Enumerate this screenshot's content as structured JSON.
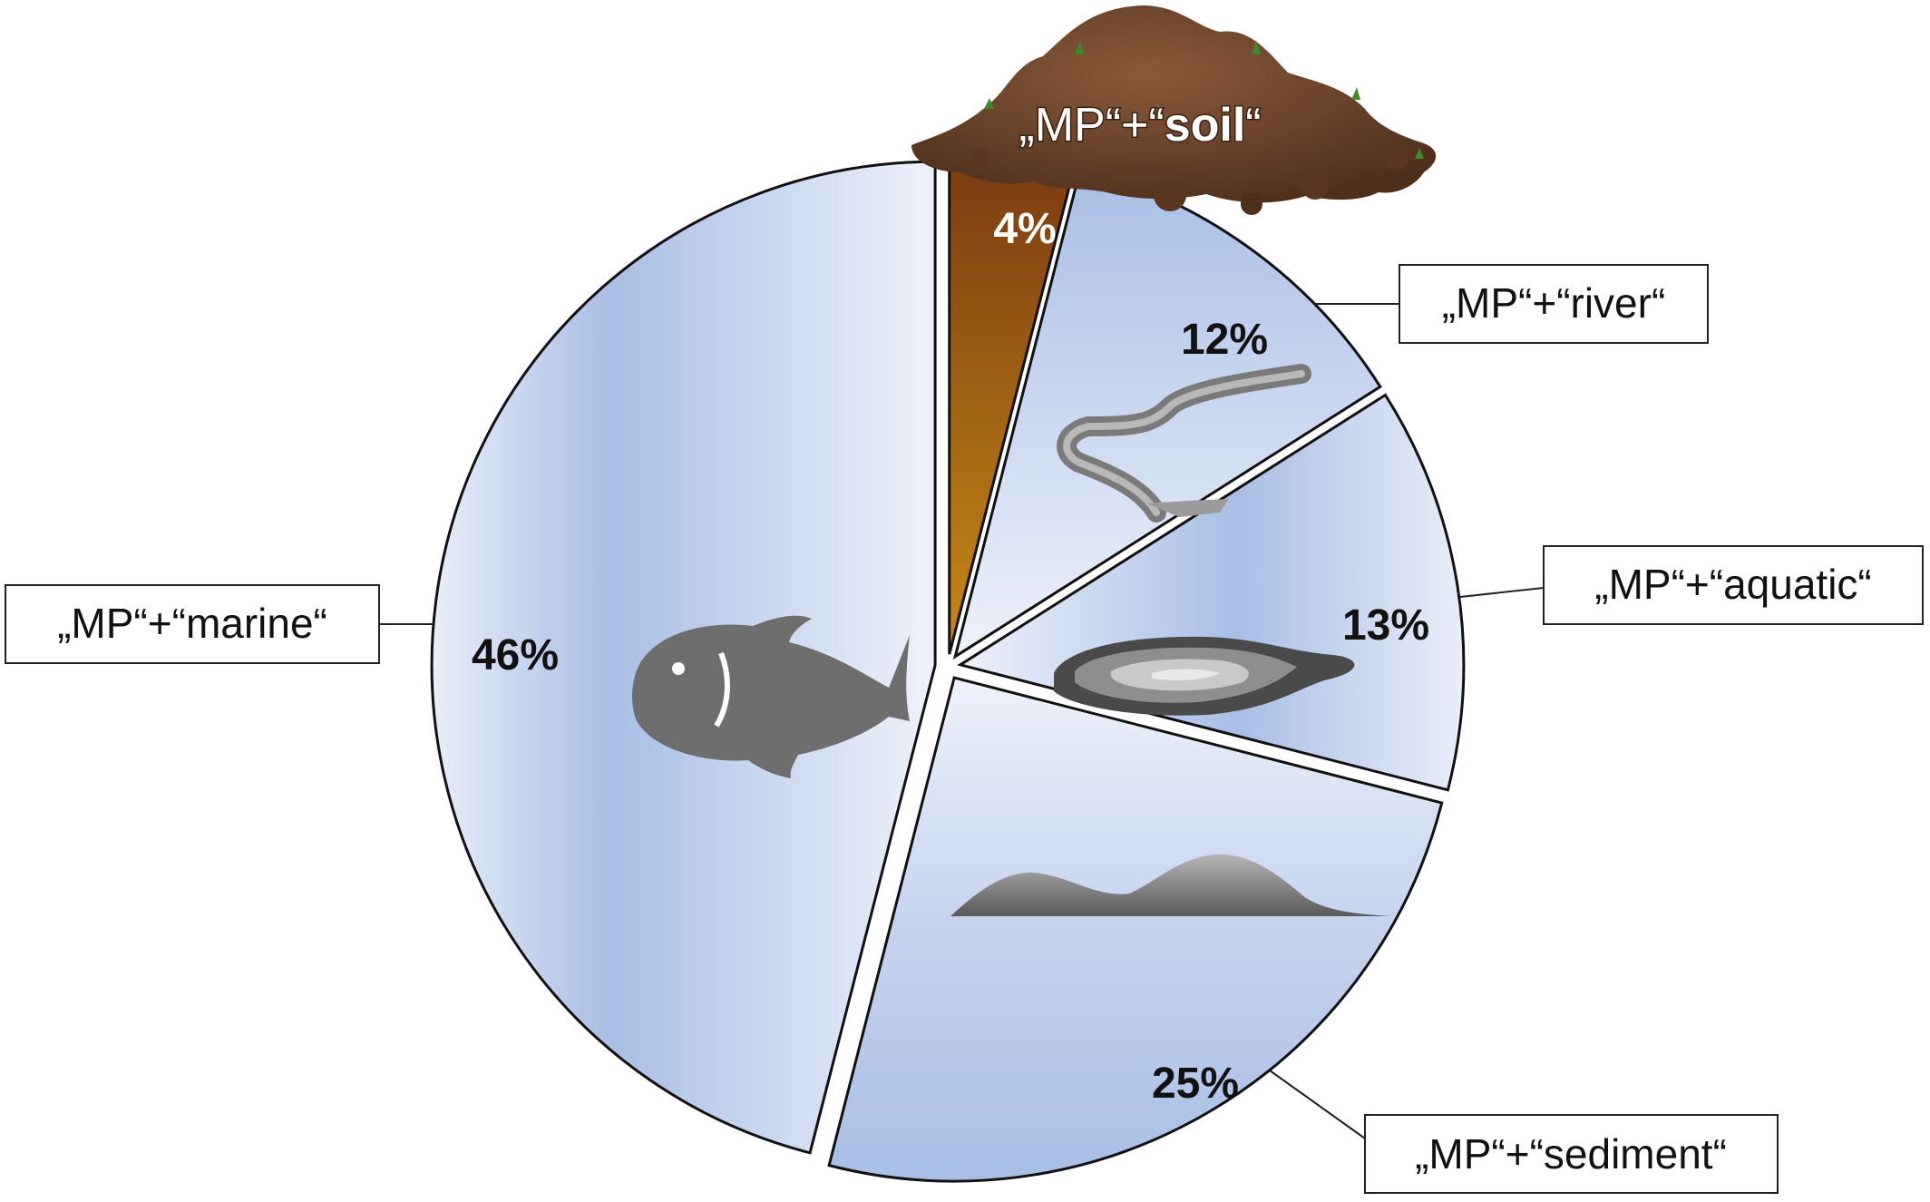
{
  "chart_data": {
    "type": "pie",
    "title": "",
    "slices": [
      {
        "key": "soil",
        "prefix": "„MP“+“",
        "term": "soil",
        "suffix": "“",
        "value": 4,
        "label": "4%",
        "term_bold": true
      },
      {
        "key": "river",
        "prefix": "„MP“+“",
        "term": "river",
        "suffix": "“",
        "value": 12,
        "label": "12%",
        "term_bold": false
      },
      {
        "key": "aquatic",
        "prefix": "„MP“+“",
        "term": "aquatic",
        "suffix": "“",
        "value": 13,
        "label": "13%",
        "term_bold": false
      },
      {
        "key": "sediment",
        "prefix": "„MP“+“",
        "term": "sediment",
        "suffix": "“",
        "value": 25,
        "label": "25%",
        "term_bold": false
      },
      {
        "key": "marine",
        "prefix": "„MP“+“",
        "term": "marine",
        "suffix": "“",
        "value": 46,
        "label": "46%",
        "term_bold": false
      }
    ],
    "slice_icons": {
      "soil": "soil-pile-icon",
      "river": "river-icon",
      "aquatic": "lake-icon",
      "sediment": "sediment-dunes-icon",
      "marine": "fish-icon"
    },
    "colors": {
      "water_fill_light": "#e9eef8",
      "water_fill_dark": "#a9bee6",
      "soil_fill_top": "#7a3a12",
      "soil_fill_bottom": "#c78a14",
      "outline": "#111111",
      "icon_gray": "#6e6e6e"
    },
    "exploded": true
  }
}
